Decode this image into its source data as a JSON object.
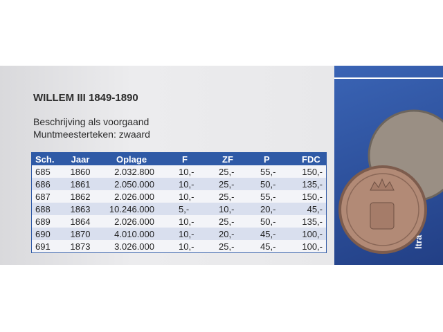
{
  "header": {
    "title": "WILLEM III 1849-1890"
  },
  "description": [
    "Beschrijving als voorgaand",
    "Muntmeesterteken: zwaard"
  ],
  "table": {
    "columns": [
      "Sch.",
      "Jaar",
      "Oplage",
      "F",
      "ZF",
      "P",
      "FDC"
    ],
    "rows": [
      [
        "685",
        "1860",
        "2.032.800",
        "10,-",
        "25,-",
        "55,-",
        "150,-"
      ],
      [
        "686",
        "1861",
        "2.050.000",
        "10,-",
        "25,-",
        "50,-",
        "135,-"
      ],
      [
        "687",
        "1862",
        "2.026.000",
        "10,-",
        "25,-",
        "55,-",
        "150,-"
      ],
      [
        "688",
        "1863",
        "10.246.000",
        "5,-",
        "10,-",
        "20,-",
        "45,-"
      ],
      [
        "689",
        "1864",
        "2.026.000",
        "10,-",
        "25,-",
        "50,-",
        "135,-"
      ],
      [
        "690",
        "1870",
        "4.010.000",
        "10,-",
        "20,-",
        "45,-",
        "100,-"
      ],
      [
        "691",
        "1873",
        "3.026.000",
        "10,-",
        "25,-",
        "45,-",
        "100,-"
      ]
    ]
  },
  "side_text": "ltra"
}
